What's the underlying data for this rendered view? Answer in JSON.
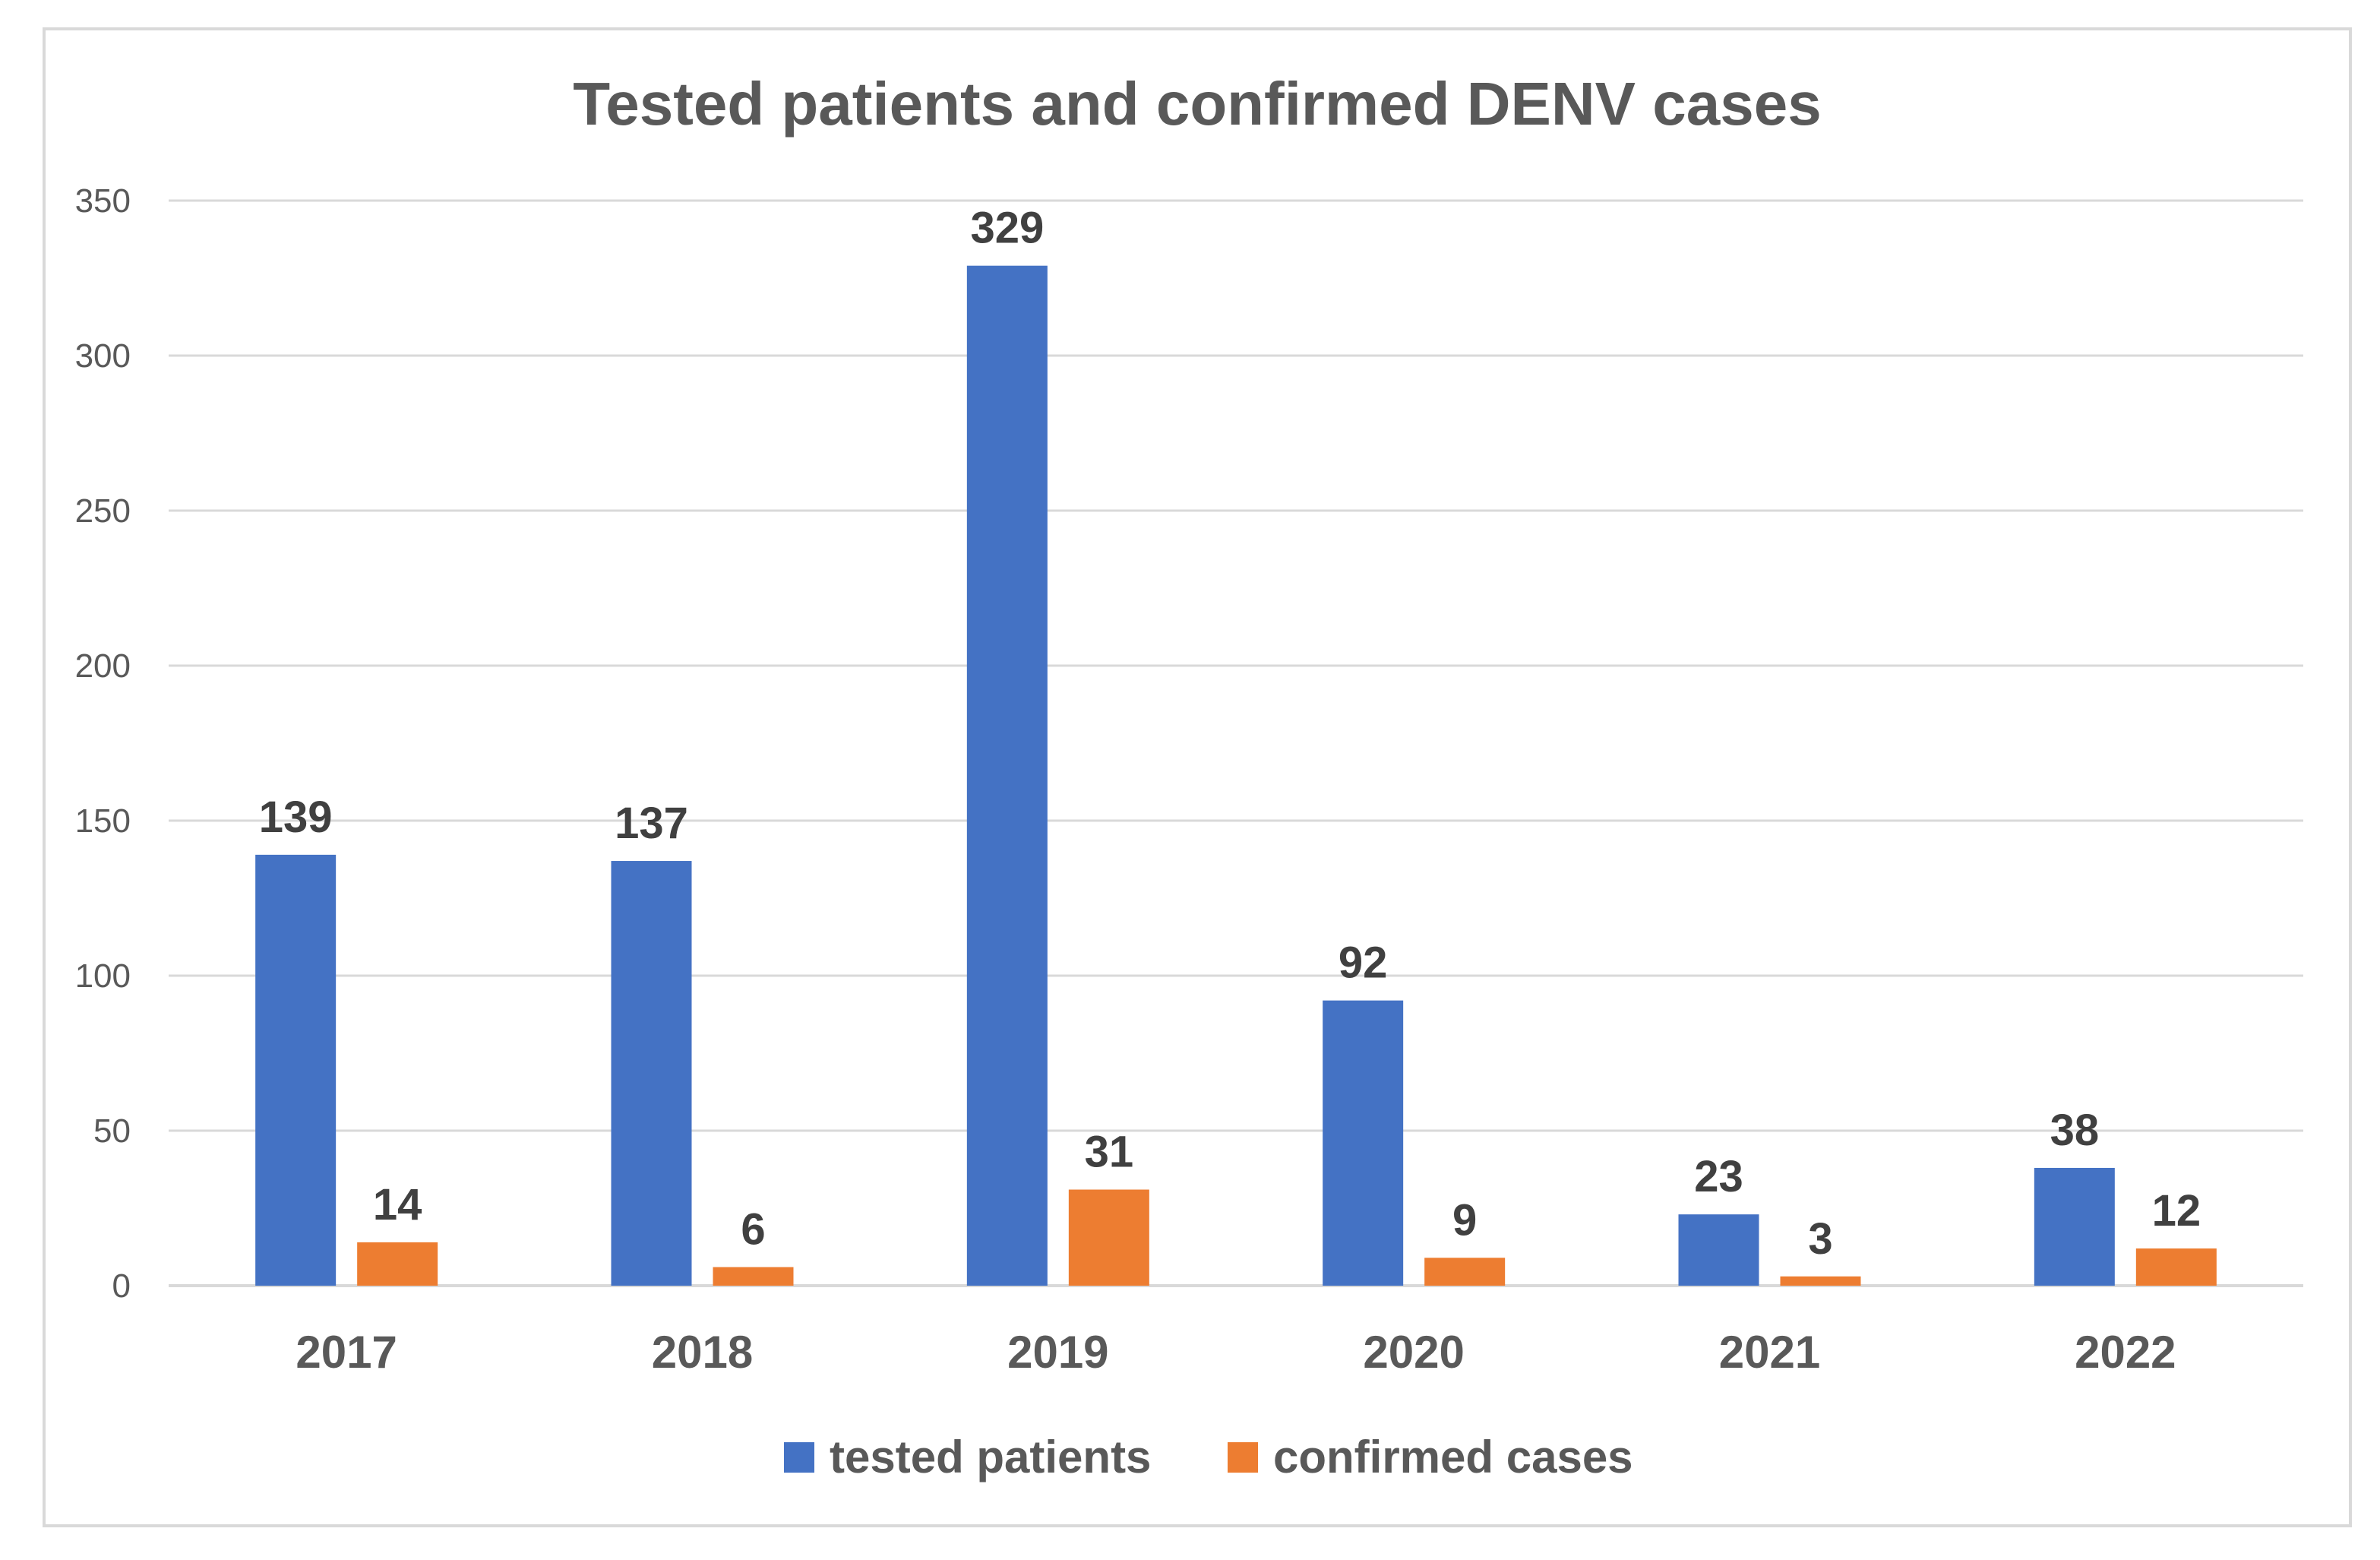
{
  "chart_data": {
    "type": "bar",
    "title": "Tested patients and confirmed DENV cases",
    "xlabel": "",
    "ylabel": "",
    "categories": [
      "2017",
      "2018",
      "2019",
      "2020",
      "2021",
      "2022"
    ],
    "series": [
      {
        "name": "tested patients",
        "color": "#4472c4",
        "values": [
          139,
          137,
          329,
          92,
          23,
          38
        ]
      },
      {
        "name": "confirmed cases",
        "color": "#ed7d31",
        "values": [
          14,
          6,
          31,
          9,
          3,
          12
        ]
      }
    ],
    "ylim": [
      0,
      350
    ],
    "yticks": [
      0,
      50,
      100,
      150,
      200,
      250,
      300,
      350
    ],
    "grid": true,
    "legend": "bottom-center",
    "data_labels": true
  },
  "colors": {
    "grid": "#d9d9d9",
    "axis": "#d9d9d9",
    "text": "#595959",
    "label": "#404040",
    "border": "#d9d9d9"
  }
}
